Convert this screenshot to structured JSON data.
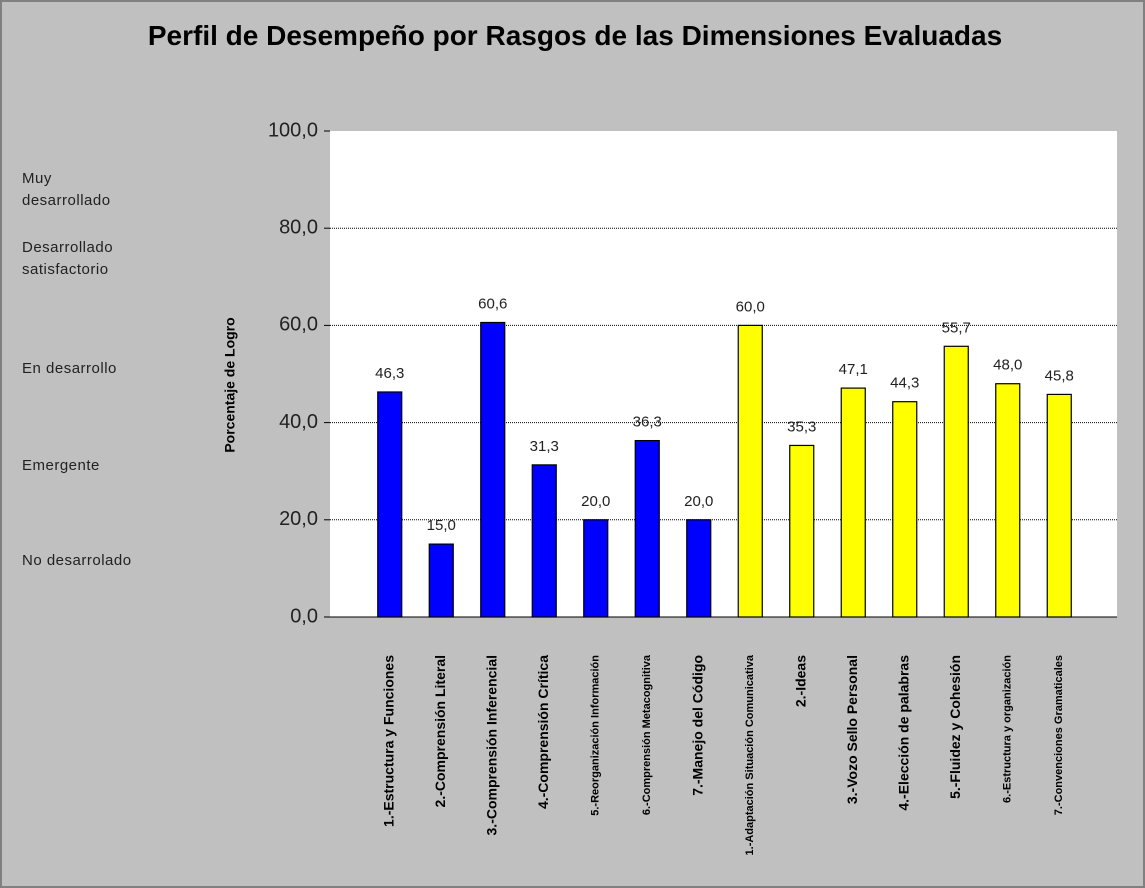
{
  "chart_data": {
    "type": "bar",
    "title": "Perfil de Desempeño por Rasgos de las Dimensiones Evaluadas",
    "y_label": "Porcentaje de Logro",
    "level_labels": [
      "Muy desarrollado",
      "Desarrollado satisfactorio",
      "En desarrollo",
      "Emergente",
      "No desarrolado"
    ],
    "categories": [
      "1.-Estructura y Funciones",
      "2.-Comprensión Literal",
      "3.-Comprensión Inferencial",
      "4.-Comprensión Crítica",
      "5.-Reorganización Información",
      "6.-Comprensión Metacognitiva",
      "7.-Manejo del Código",
      "1.-Adaptación Situación Comunicativa",
      "2.-Ideas",
      "3.-Vozo Sello Personal",
      "4.-Elección de palabras",
      "5.-Fluidez y Cohesión",
      "6.-Estructura y organización",
      "7.-Convenciones Gramaticales"
    ],
    "values": [
      46.3,
      15.0,
      60.6,
      31.3,
      20.0,
      36.3,
      20.0,
      60.0,
      35.3,
      47.1,
      44.3,
      55.7,
      48.0,
      45.8
    ],
    "value_labels": [
      "46,3",
      "15,0",
      "60,6",
      "31,3",
      "20,0",
      "36,3",
      "20,0",
      "60,0",
      "35,3",
      "47,1",
      "44,3",
      "55,7",
      "48,0",
      "45,8"
    ],
    "colors": [
      "#0000ff",
      "#0000ff",
      "#0000ff",
      "#0000ff",
      "#0000ff",
      "#0000ff",
      "#0000ff",
      "#ffff00",
      "#ffff00",
      "#ffff00",
      "#ffff00",
      "#ffff00",
      "#ffff00",
      "#ffff00"
    ],
    "ylim": [
      0,
      100
    ],
    "yticks": [
      {
        "value": 0,
        "label": "0,0"
      },
      {
        "value": 20,
        "label": "20,0"
      },
      {
        "value": 40,
        "label": "40,0"
      },
      {
        "value": 60,
        "label": "60,0"
      },
      {
        "value": 80,
        "label": "80,0"
      },
      {
        "value": 100,
        "label": "100,0"
      }
    ],
    "grid": true
  }
}
